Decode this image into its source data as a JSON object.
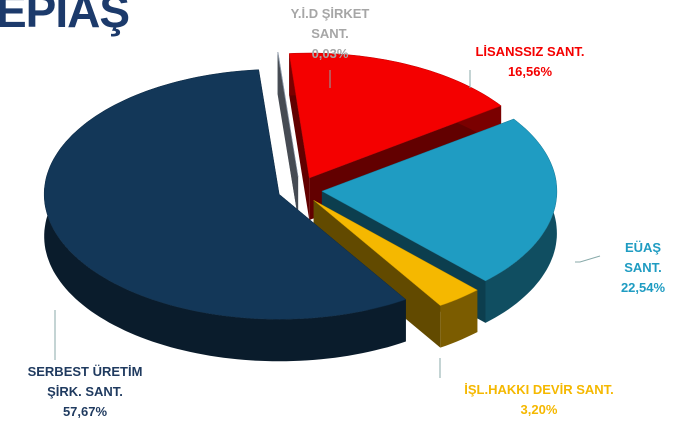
{
  "logo": "EPİAŞ",
  "chart_data": {
    "type": "pie",
    "categories": [
      "Y.İ.D  ŞİRKET\nSANT.",
      "LİSANSSIZ SANT.",
      "EÜAŞ SANT.",
      "İŞL.HAKKI DEVİR SANT.",
      "SERBEST ÜRETİM\nŞİRK. SANT."
    ],
    "values": [
      0.03,
      16.56,
      22.54,
      3.2,
      57.67
    ],
    "value_labels": [
      "0,03%",
      "16,56%",
      "22,54%",
      "3,20%",
      "57,67%"
    ],
    "colors": [
      "#aebcd0",
      "#f40000",
      "#1f9cc2",
      "#f5b800",
      "#133758"
    ]
  }
}
